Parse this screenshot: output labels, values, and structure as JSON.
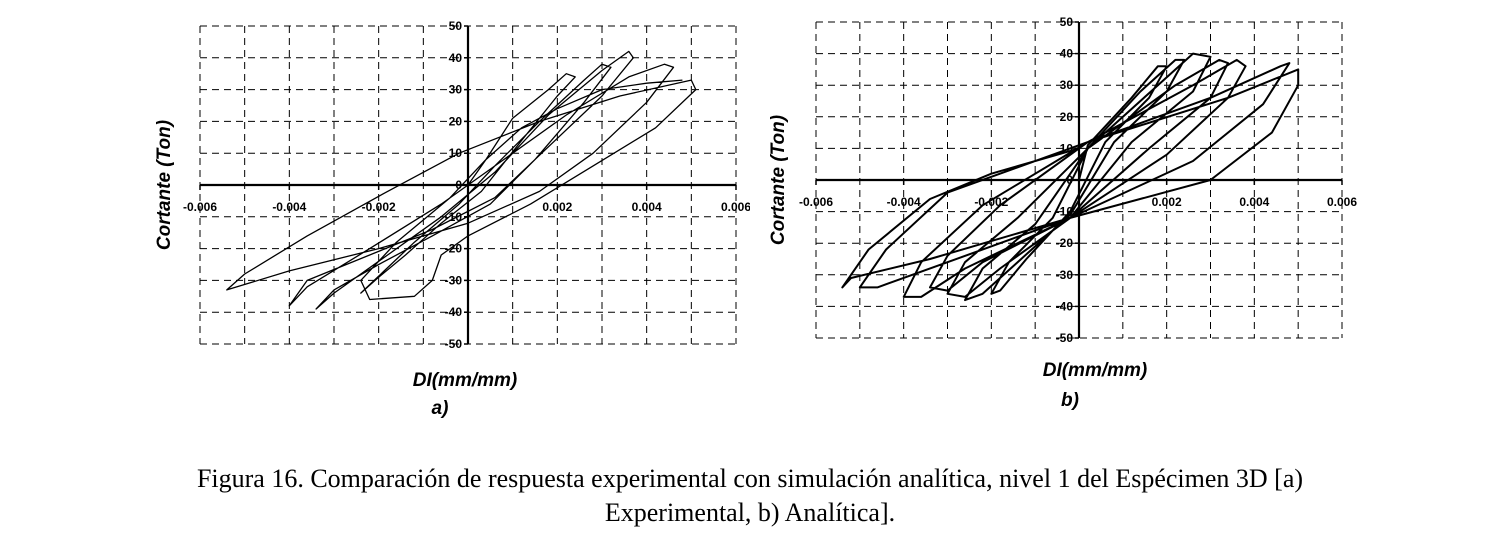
{
  "chart_data": [
    {
      "type": "line",
      "panel_label": "a)",
      "xlabel": "DI(mm/mm)",
      "ylabel": "Cortante (Ton)",
      "xlim": [
        -0.006,
        0.006
      ],
      "ylim": [
        -50,
        50
      ],
      "x_ticks": [
        "-0.006",
        "-0.004",
        "-0.002",
        "0",
        "0.002",
        "0.004",
        "0.006"
      ],
      "y_ticks": [
        "50",
        "40",
        "30",
        "20",
        "10",
        "0",
        "-10",
        "-20",
        "-30",
        "-40",
        "-50"
      ],
      "grid": true,
      "series": [
        {
          "values": [
            [
              0.0,
              0.0
            ],
            [
              0.0004,
              8
            ],
            [
              0.001,
              21
            ],
            [
              0.0018,
              30
            ],
            [
              0.0022,
              35
            ],
            [
              0.0024,
              34
            ],
            [
              0.002,
              28
            ],
            [
              0.0012,
              14
            ],
            [
              0.0003,
              -2
            ],
            [
              -0.0006,
              -12
            ],
            [
              -0.0014,
              -22
            ],
            [
              -0.002,
              -29
            ],
            [
              -0.0024,
              -34
            ],
            [
              -0.0021,
              -30
            ],
            [
              -0.0012,
              -18
            ],
            [
              -0.0002,
              -6
            ],
            [
              0.0006,
              6
            ],
            [
              0.0016,
              20
            ],
            [
              0.0026,
              33
            ],
            [
              0.003,
              38
            ],
            [
              0.0032,
              37
            ],
            [
              0.0026,
              26
            ],
            [
              0.0015,
              8
            ],
            [
              0.0005,
              -6
            ],
            [
              -0.0008,
              -16
            ],
            [
              -0.002,
              -25
            ],
            [
              -0.003,
              -33
            ],
            [
              -0.0034,
              -39
            ],
            [
              -0.003,
              -34
            ],
            [
              -0.0018,
              -22
            ],
            [
              -0.0006,
              -10
            ],
            [
              0.0006,
              4
            ],
            [
              0.0018,
              22
            ],
            [
              0.003,
              36
            ],
            [
              0.0036,
              42
            ],
            [
              0.0037,
              40
            ],
            [
              0.003,
              28
            ],
            [
              0.0018,
              12
            ],
            [
              0.0006,
              -4
            ],
            [
              -0.0008,
              -14
            ],
            [
              -0.0022,
              -22
            ],
            [
              -0.0036,
              -30
            ],
            [
              -0.004,
              -38
            ],
            [
              -0.0036,
              -32
            ],
            [
              -0.0022,
              -20
            ],
            [
              -0.0006,
              -6
            ],
            [
              0.0008,
              8
            ],
            [
              0.0022,
              22
            ],
            [
              0.0036,
              34
            ],
            [
              0.0044,
              38
            ],
            [
              0.0046,
              37
            ],
            [
              0.004,
              26
            ],
            [
              0.0028,
              10
            ],
            [
              0.0016,
              -2
            ],
            [
              0.0,
              -12
            ],
            [
              -0.002,
              -20
            ],
            [
              -0.004,
              -27
            ],
            [
              -0.0054,
              -33
            ],
            [
              -0.005,
              -28
            ],
            [
              -0.0036,
              -16
            ],
            [
              -0.0018,
              -2
            ],
            [
              -0.0002,
              10
            ],
            [
              0.0016,
              20
            ],
            [
              0.0034,
              28
            ],
            [
              0.005,
              33
            ],
            [
              0.0051,
              30
            ],
            [
              0.0042,
              18
            ],
            [
              0.0028,
              6
            ],
            [
              0.0014,
              -6
            ],
            [
              0.0,
              -16
            ],
            [
              -0.0006,
              -22
            ],
            [
              -0.0008,
              -30
            ],
            [
              -0.0012,
              -35
            ],
            [
              -0.0022,
              -36
            ],
            [
              -0.0024,
              -30
            ],
            [
              -0.0016,
              -18
            ],
            [
              -0.0004,
              -4
            ],
            [
              0.0004,
              8
            ],
            [
              0.0012,
              18
            ],
            [
              0.002,
              24
            ],
            [
              0.003,
              30
            ],
            [
              0.004,
              32
            ],
            [
              0.0048,
              33
            ]
          ]
        }
      ]
    },
    {
      "type": "line",
      "panel_label": "b)",
      "xlabel": "DI(mm/mm)",
      "ylabel": "Cortante (Ton)",
      "xlim": [
        -0.006,
        0.006
      ],
      "ylim": [
        -50,
        50
      ],
      "x_ticks": [
        "-0.006",
        "-0.004",
        "-0.002",
        "0",
        "0.002",
        "0.004",
        "0.006"
      ],
      "y_ticks": [
        "50",
        "40",
        "30",
        "20",
        "10",
        "0",
        "-10",
        "-20",
        "-30",
        "-40",
        "-50"
      ],
      "grid": true,
      "series": [
        {
          "values": [
            [
              0.0,
              0.0
            ],
            [
              0.0002,
              11
            ],
            [
              0.0012,
              26
            ],
            [
              0.0018,
              36
            ],
            [
              0.002,
              36
            ],
            [
              0.0016,
              26
            ],
            [
              0.0006,
              12
            ],
            [
              -0.0002,
              -10
            ],
            [
              -0.0012,
              -25
            ],
            [
              -0.0018,
              -35
            ],
            [
              -0.002,
              -36
            ],
            [
              -0.0016,
              -26
            ],
            [
              -0.0006,
              -12
            ],
            [
              0.0002,
              10
            ],
            [
              0.0014,
              28
            ],
            [
              0.0022,
              38
            ],
            [
              0.0024,
              38
            ],
            [
              0.002,
              28
            ],
            [
              0.0008,
              12
            ],
            [
              -0.0002,
              -11
            ],
            [
              -0.0014,
              -26
            ],
            [
              -0.0022,
              -36
            ],
            [
              -0.0026,
              -38
            ],
            [
              -0.0022,
              -28
            ],
            [
              -0.001,
              -14
            ],
            [
              0.0002,
              10
            ],
            [
              0.0018,
              30
            ],
            [
              0.0026,
              40
            ],
            [
              0.003,
              39
            ],
            [
              0.0026,
              28
            ],
            [
              0.0012,
              12
            ],
            [
              -0.0002,
              -12
            ],
            [
              -0.0018,
              -28
            ],
            [
              -0.0026,
              -37
            ],
            [
              -0.003,
              -36
            ],
            [
              -0.0026,
              -26
            ],
            [
              -0.0014,
              -12
            ],
            [
              0.0002,
              10
            ],
            [
              0.0022,
              30
            ],
            [
              0.0032,
              38
            ],
            [
              0.0034,
              37
            ],
            [
              0.003,
              26
            ],
            [
              0.0016,
              10
            ],
            [
              -0.0002,
              -12
            ],
            [
              -0.0022,
              -26
            ],
            [
              -0.003,
              -35
            ],
            [
              -0.0034,
              -34
            ],
            [
              -0.003,
              -24
            ],
            [
              -0.0018,
              -8
            ],
            [
              0.0002,
              12
            ],
            [
              0.0026,
              30
            ],
            [
              0.0036,
              38
            ],
            [
              0.0038,
              36
            ],
            [
              0.0034,
              26
            ],
            [
              0.002,
              8
            ],
            [
              -0.0002,
              -12
            ],
            [
              -0.0026,
              -28
            ],
            [
              -0.0036,
              -37
            ],
            [
              -0.004,
              -37
            ],
            [
              -0.0036,
              -26
            ],
            [
              -0.0022,
              -8
            ],
            [
              0.0002,
              12
            ],
            [
              0.003,
              26
            ],
            [
              0.0046,
              36
            ],
            [
              0.0048,
              37
            ],
            [
              0.0042,
              24
            ],
            [
              0.0026,
              6
            ],
            [
              -0.0002,
              -12
            ],
            [
              -0.003,
              -26
            ],
            [
              -0.0046,
              -34
            ],
            [
              -0.005,
              -34
            ],
            [
              -0.0044,
              -22
            ],
            [
              -0.003,
              -4
            ],
            [
              0.0002,
              12
            ],
            [
              0.0034,
              26
            ],
            [
              0.005,
              35
            ],
            [
              0.005,
              30
            ],
            [
              0.0044,
              15
            ],
            [
              0.003,
              0
            ],
            [
              -0.0002,
              -12
            ],
            [
              -0.0034,
              -25
            ],
            [
              -0.0052,
              -31
            ],
            [
              -0.0054,
              -34
            ],
            [
              -0.0048,
              -22
            ],
            [
              -0.0034,
              -6
            ],
            [
              -0.002,
              2
            ],
            [
              0.0,
              10
            ]
          ]
        }
      ]
    }
  ],
  "caption": {
    "line1": "Figura 16. Comparación de respuesta experimental con simulación analítica, nivel 1 del Espécimen 3D [a)",
    "line2": "Experimental, b) Analítica]."
  }
}
